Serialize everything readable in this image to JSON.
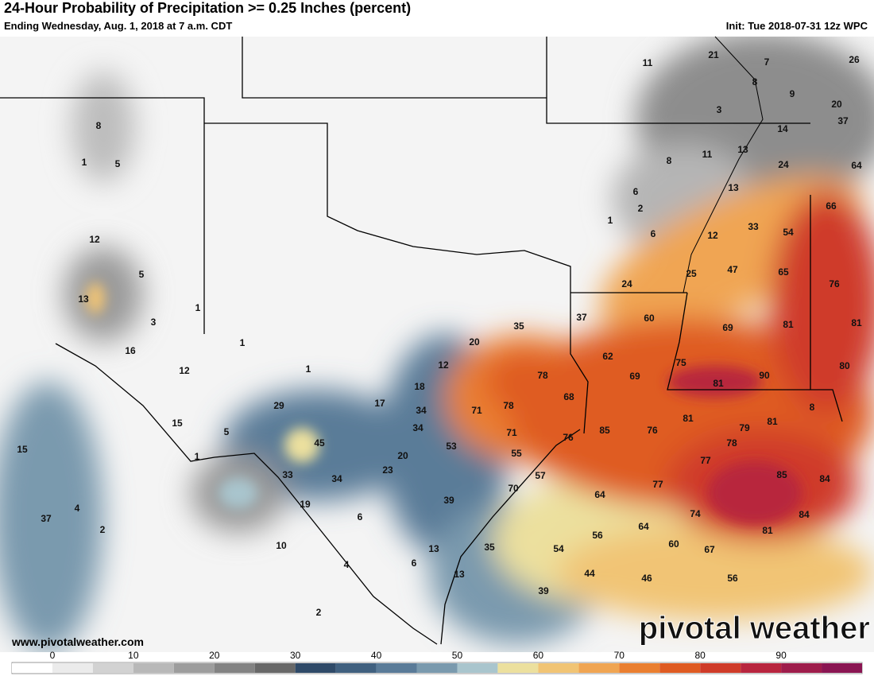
{
  "header": {
    "title": "24-Hour Probability of Precipitation >= 0.25 Inches (percent)",
    "subtitle": "Ending Wednesday, Aug. 1, 2018 at 7 a.m. CDT",
    "init": "Init: Tue 2018-07-31 12z WPC"
  },
  "map_labels": [
    11,
    21,
    7,
    26,
    8,
    9,
    3,
    20,
    37,
    14,
    13,
    11,
    8,
    24,
    64,
    13,
    6,
    2,
    1,
    6,
    66,
    33,
    54,
    12,
    47,
    25,
    65,
    24,
    76,
    37,
    60,
    69,
    81,
    81,
    35,
    20,
    62,
    75,
    90,
    80,
    12,
    69,
    81,
    78,
    18,
    68,
    8,
    17,
    34,
    71,
    78,
    81,
    81,
    79,
    34,
    71,
    85,
    76,
    76,
    78,
    53,
    20,
    55,
    77,
    23,
    57,
    85,
    84,
    70,
    77,
    39,
    64,
    74,
    84,
    64,
    81,
    35,
    54,
    56,
    60,
    67,
    13,
    44,
    13,
    46,
    56,
    39,
    6,
    8,
    1,
    5,
    12,
    5,
    13,
    1,
    3,
    1,
    16,
    12,
    1,
    29,
    15,
    5,
    1,
    45,
    15,
    33,
    34,
    19,
    4,
    37,
    2,
    6,
    10,
    4,
    2
  ],
  "footer": {
    "website": "www.pivotalweather.com",
    "brand": "pivotal weather"
  },
  "colorbar": {
    "ticks": [
      0,
      10,
      20,
      30,
      40,
      50,
      60,
      70,
      80,
      90
    ],
    "colors": [
      "#ffffff",
      "#ebebeb",
      "#d2d2d2",
      "#b8b8b8",
      "#9d9d9d",
      "#838383",
      "#686868",
      "#2f4a68",
      "#40607f",
      "#5a7b98",
      "#7a9aae",
      "#a9c5cd",
      "#ece09e",
      "#f1c474",
      "#f0a552",
      "#ea7f30",
      "#df5b22",
      "#cf3b29",
      "#b8253e",
      "#9e1c4b",
      "#8a1552"
    ]
  }
}
